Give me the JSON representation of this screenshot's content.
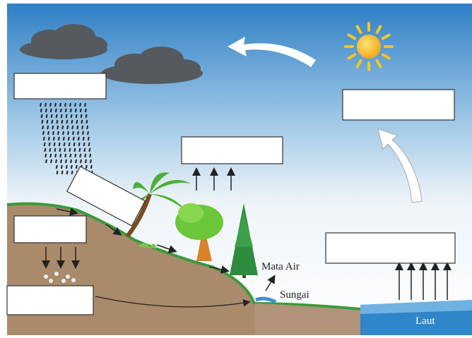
{
  "labels": [
    {
      "text": "Mata Air"
    },
    {
      "text": "Sungai"
    },
    {
      "text": "Laut"
    }
  ]
}
